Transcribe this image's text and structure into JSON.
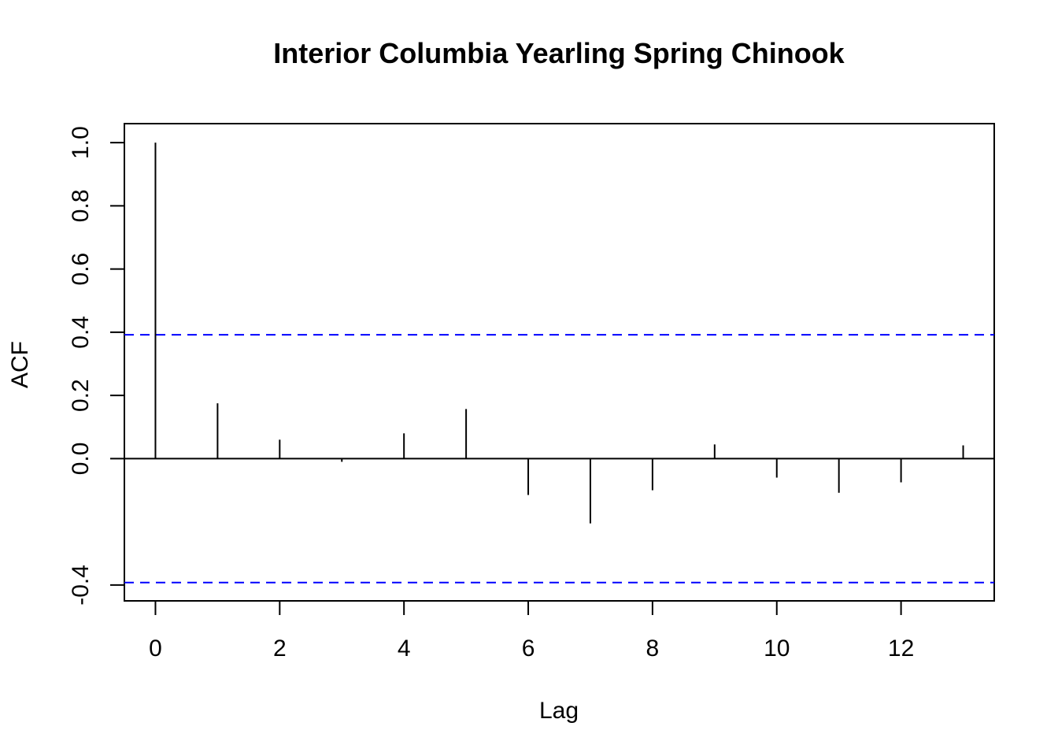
{
  "chart_data": {
    "type": "bar",
    "title": "Interior Columbia Yearling Spring Chinook",
    "xlabel": "Lag",
    "ylabel": "ACF",
    "x": [
      0,
      1,
      2,
      3,
      4,
      5,
      6,
      7,
      8,
      9,
      10,
      11,
      12,
      13
    ],
    "values": [
      1.0,
      0.175,
      0.06,
      -0.01,
      0.08,
      0.157,
      -0.115,
      -0.205,
      -0.1,
      0.045,
      -0.06,
      -0.108,
      -0.075,
      0.042
    ],
    "confidence_bounds": [
      0.392,
      -0.392
    ],
    "xlim": [
      -0.5,
      13.5
    ],
    "ylim": [
      -0.45,
      1.06
    ],
    "x_ticks": [
      "0",
      "2",
      "4",
      "6",
      "8",
      "10",
      "12"
    ],
    "y_ticks": [
      "-0.4",
      "0.0",
      "0.2",
      "0.4",
      "0.6",
      "0.8",
      "1.0"
    ],
    "colors": {
      "bars": "#000000",
      "bounds": "#0000ff",
      "zero_line": "#000000"
    },
    "grid": false
  }
}
